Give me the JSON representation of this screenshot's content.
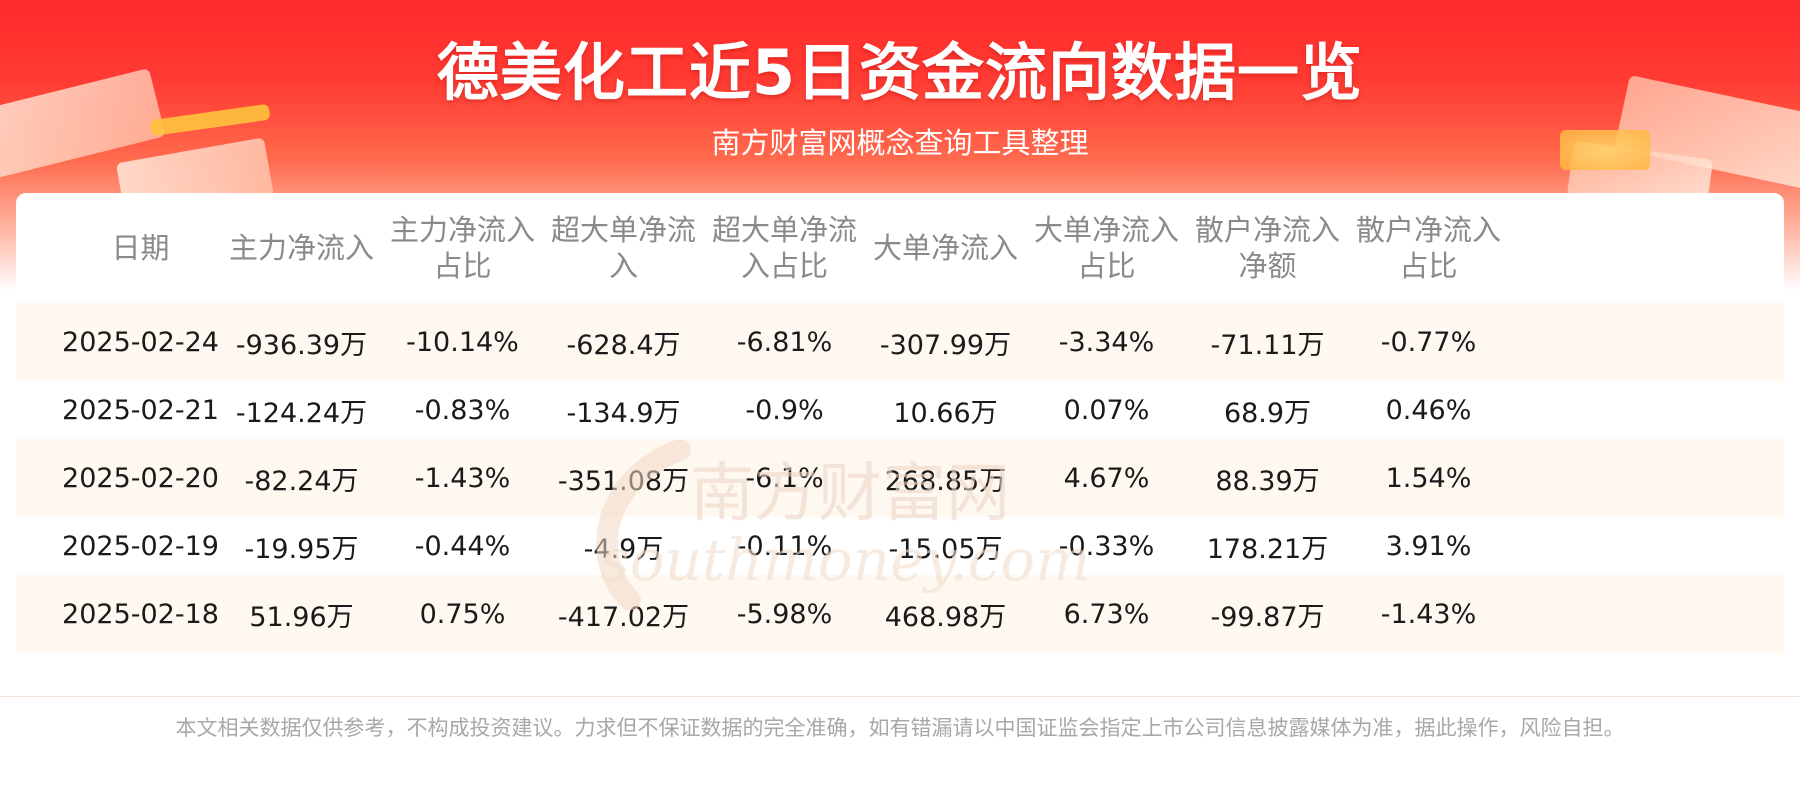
{
  "header": {
    "title": "德美化工近5日资金流向数据一览",
    "subtitle": "南方财富网概念查询工具整理"
  },
  "watermark": {
    "cn": "南方财富网",
    "en": "southmoney.com"
  },
  "table": {
    "columns": [
      [
        "日期"
      ],
      [
        "主力净流入"
      ],
      [
        "主力净流入",
        "占比"
      ],
      [
        "超大单净流",
        "入"
      ],
      [
        "超大单净流",
        "入占比"
      ],
      [
        "大单净流入"
      ],
      [
        "大单净流入",
        "占比"
      ],
      [
        "散户净流入",
        "净额"
      ],
      [
        "散户净流入",
        "占比"
      ]
    ],
    "rows": [
      [
        "2025-02-24",
        "-936.39万",
        "-10.14%",
        "-628.4万",
        "-6.81%",
        "-307.99万",
        "-3.34%",
        "-71.11万",
        "-0.77%"
      ],
      [
        "2025-02-21",
        "-124.24万",
        "-0.83%",
        "-134.9万",
        "-0.9%",
        "10.66万",
        "0.07%",
        "68.9万",
        "0.46%"
      ],
      [
        "2025-02-20",
        "-82.24万",
        "-1.43%",
        "-351.08万",
        "-6.1%",
        "268.85万",
        "4.67%",
        "88.39万",
        "1.54%"
      ],
      [
        "2025-02-19",
        "-19.95万",
        "-0.44%",
        "-4.9万",
        "-0.11%",
        "-15.05万",
        "-0.33%",
        "178.21万",
        "3.91%"
      ],
      [
        "2025-02-18",
        "51.96万",
        "0.75%",
        "-417.02万",
        "-5.98%",
        "468.98万",
        "6.73%",
        "-99.87万",
        "-1.43%"
      ]
    ]
  },
  "footer": {
    "disclaimer": "本文相关数据仅供参考，不构成投资建议。力求但不保证数据的完全准确，如有错漏请以中国证监会指定上市公司信息披露媒体为准，据此操作，风险自担。"
  },
  "colors": {
    "banner_red": "#ff2a2a",
    "stripe": "#fff8f1",
    "header_text": "#8a8a8a"
  }
}
